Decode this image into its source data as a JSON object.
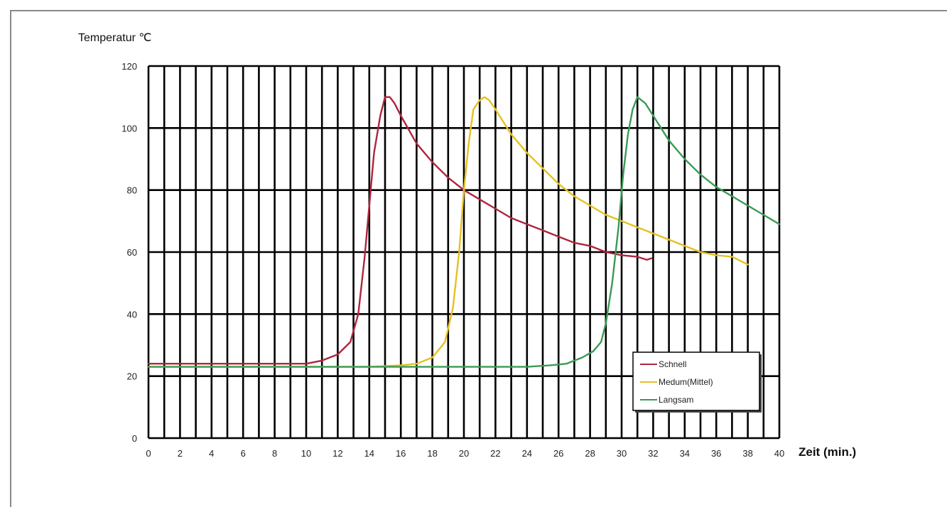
{
  "chart_data": {
    "type": "line",
    "ylabel": "Temperatur ℃",
    "xlabel": "Zeit (min.)",
    "xlim": [
      0,
      40
    ],
    "ylim": [
      0,
      120
    ],
    "x_ticks": [
      "0",
      "2",
      "4",
      "6",
      "8",
      "10",
      "12",
      "14",
      "16",
      "18",
      "20",
      "22",
      "24",
      "26",
      "28",
      "30",
      "32",
      "34",
      "36",
      "38",
      "40"
    ],
    "y_ticks": [
      "0",
      "20",
      "40",
      "60",
      "80",
      "100",
      "120"
    ],
    "grid": true,
    "legend_position": "lower-right",
    "series": [
      {
        "name": "Schnell",
        "color": "#b0243c",
        "x": [
          0,
          9,
          10,
          11,
          12,
          12.8,
          13.3,
          13.7,
          14.0,
          14.3,
          14.7,
          15.0,
          15.3,
          15.6,
          16.0,
          17.0,
          18.0,
          19.0,
          20.0,
          21.0,
          22.0,
          23.0,
          24.0,
          25.0,
          26.0,
          27.0,
          28.0,
          29.0,
          30.0,
          31.0,
          31.6,
          31.9
        ],
        "y": [
          24,
          24,
          24,
          25,
          27,
          31,
          40,
          58,
          75,
          92,
          104,
          110,
          110,
          108,
          104,
          95,
          89,
          84,
          80,
          77,
          74,
          71,
          69,
          67,
          65,
          63,
          62,
          60,
          59,
          58.5,
          57.5,
          58
        ]
      },
      {
        "name": "Medum(Mittel)",
        "color": "#e6c020",
        "x": [
          0,
          14,
          16,
          17,
          18,
          18.8,
          19.3,
          19.7,
          20.0,
          20.3,
          20.6,
          21.0,
          21.3,
          21.6,
          22.0,
          23.0,
          24.0,
          25.0,
          26.0,
          27.0,
          28.0,
          29.0,
          30.0,
          31.0,
          32.0,
          33.0,
          34.0,
          35.0,
          36.0,
          37.0,
          38.0
        ],
        "y": [
          23,
          23,
          23.5,
          24,
          26,
          31,
          42,
          60,
          80,
          95,
          106,
          109,
          110,
          109,
          106,
          98,
          92,
          87,
          82,
          78,
          75,
          72,
          70,
          68,
          66,
          64,
          62,
          60,
          59,
          58.5,
          56
        ]
      },
      {
        "name": "Langsam",
        "color": "#3a9a54",
        "x": [
          0,
          24,
          25.5,
          26.5,
          27.5,
          28.2,
          28.7,
          29.0,
          29.4,
          29.8,
          30.1,
          30.4,
          30.7,
          31.0,
          31.5,
          32.0,
          33.0,
          34.0,
          35.0,
          36.0,
          37.0,
          38.0,
          39.0,
          40.0
        ],
        "y": [
          23,
          23,
          23.5,
          24,
          26,
          28,
          31,
          37,
          50,
          68,
          85,
          98,
          106,
          110,
          108,
          104,
          96,
          90,
          85,
          81,
          78,
          75,
          72,
          69
        ]
      }
    ]
  }
}
